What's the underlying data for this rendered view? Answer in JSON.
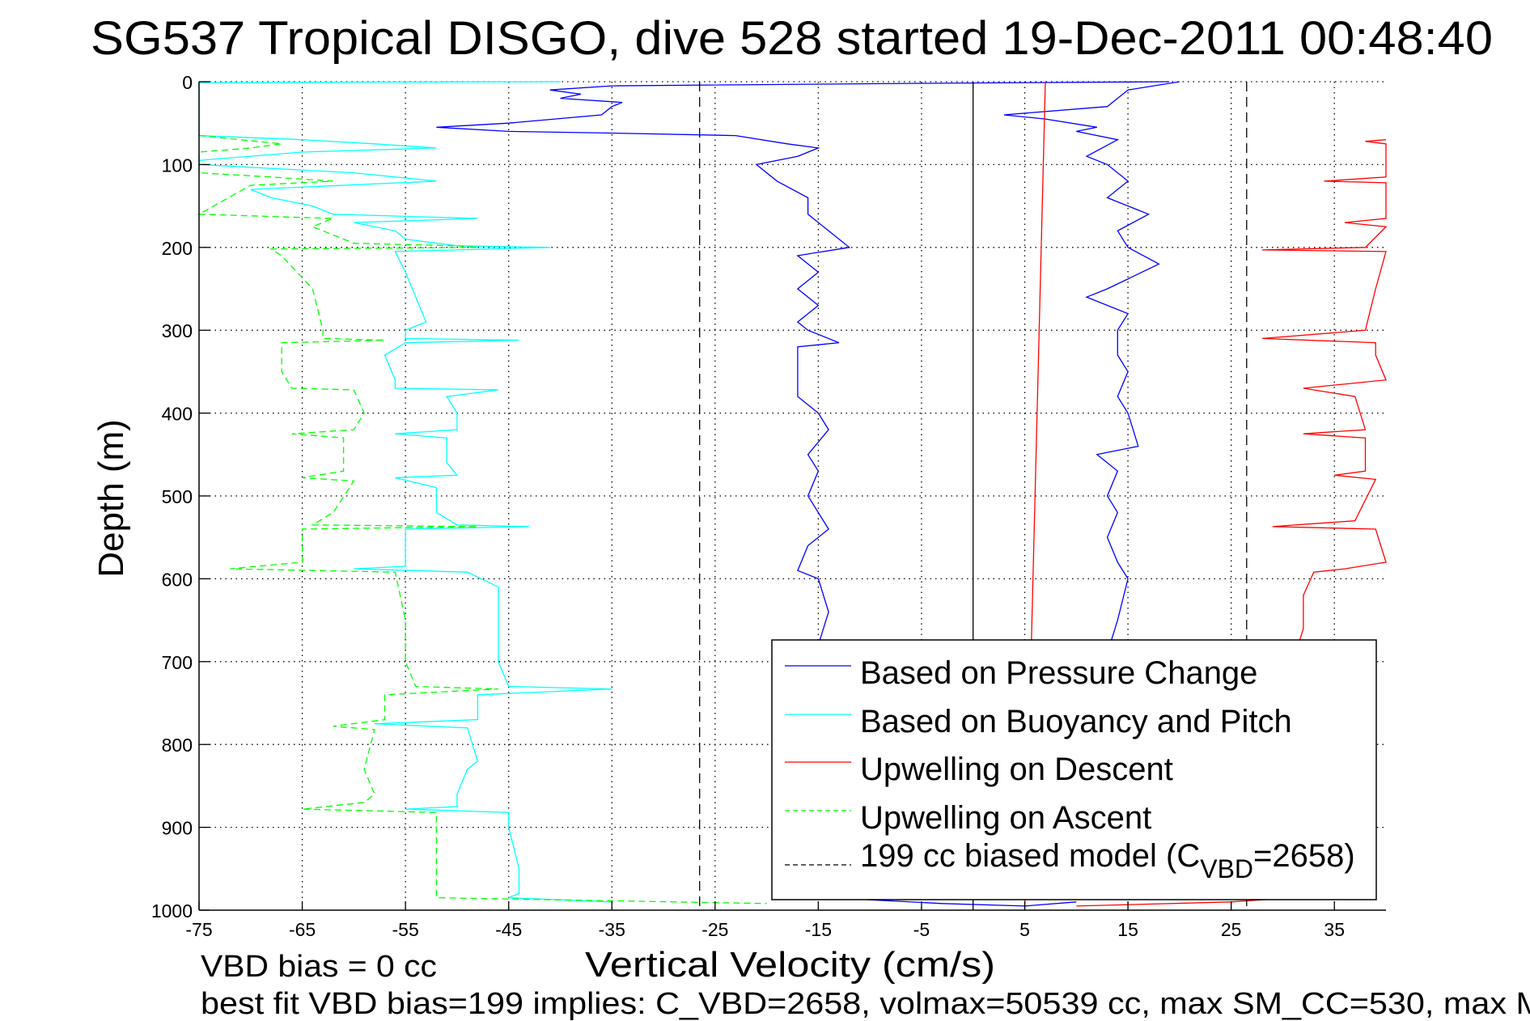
{
  "chart_data": {
    "type": "line",
    "title": "SG537 Tropical DISGO, dive 528 started 19-Dec-2011 00:48:40",
    "xlabel": "Vertical Velocity (cm/s)",
    "ylabel": "Depth (m)",
    "xlim": [
      -75,
      40
    ],
    "ylim": [
      0,
      1000
    ],
    "y_reversed": true,
    "grid": true,
    "xticks": [
      -75,
      -65,
      -55,
      -45,
      -35,
      -25,
      -15,
      -5,
      5,
      15,
      25,
      35
    ],
    "yticks": [
      0,
      100,
      200,
      300,
      400,
      500,
      600,
      700,
      800,
      900,
      1000
    ],
    "legend": {
      "placement": "bottom-right",
      "entries": [
        {
          "label": "Based on Pressure Change",
          "color": "#0000ff",
          "style": "solid"
        },
        {
          "label": "Based on Buoyancy and Pitch",
          "color": "#00ffff",
          "style": "solid"
        },
        {
          "label": "Upwelling on Descent",
          "color": "#ff0000",
          "style": "solid"
        },
        {
          "label": "Upwelling on Ascent",
          "color": "#00ff00",
          "style": "dashed"
        },
        {
          "label_main": "199 cc biased model (C",
          "label_sub": "VBD",
          "label_end": "=2658)",
          "color": "#000000",
          "style": "dashed"
        }
      ]
    },
    "series": [
      {
        "name": "Based on Pressure Change (descent)",
        "color": "#0000ff",
        "style": "solid",
        "points": [
          [
            19,
            0
          ],
          [
            -5,
            2
          ],
          [
            -35,
            5
          ],
          [
            -41,
            10
          ],
          [
            -38,
            15
          ],
          [
            -40,
            20
          ],
          [
            -34,
            25
          ],
          [
            -35,
            30
          ],
          [
            -36,
            40
          ],
          [
            -45,
            50
          ],
          [
            -52,
            55
          ],
          [
            -45,
            60
          ],
          [
            -35,
            62
          ],
          [
            -23,
            65
          ],
          [
            -18,
            75
          ],
          [
            -15,
            80
          ],
          [
            -17,
            90
          ],
          [
            -21,
            100
          ],
          [
            -19,
            120
          ],
          [
            -16,
            140
          ],
          [
            -16,
            160
          ],
          [
            -14,
            180
          ],
          [
            -12,
            200
          ],
          [
            -17,
            210
          ],
          [
            -15,
            230
          ],
          [
            -17,
            250
          ],
          [
            -15,
            270
          ],
          [
            -17,
            290
          ],
          [
            -16,
            300
          ],
          [
            -13,
            315
          ],
          [
            -17,
            320
          ],
          [
            -17,
            350
          ],
          [
            -17,
            380
          ],
          [
            -15,
            400
          ],
          [
            -14,
            420
          ],
          [
            -16,
            450
          ],
          [
            -15,
            470
          ],
          [
            -16,
            500
          ],
          [
            -14,
            540
          ],
          [
            -16,
            560
          ],
          [
            -17,
            590
          ],
          [
            -15,
            600
          ],
          [
            -14,
            640
          ],
          [
            -15,
            680
          ],
          [
            -15,
            750
          ],
          [
            -15,
            850
          ],
          [
            -15,
            950
          ],
          [
            -14,
            985
          ],
          [
            -3,
            992
          ],
          [
            5,
            995
          ],
          [
            10,
            990
          ]
        ]
      },
      {
        "name": "Based on Pressure Change (ascent)",
        "color": "#0000ff",
        "style": "solid",
        "points": [
          [
            20,
            0
          ],
          [
            15,
            10
          ],
          [
            13,
            30
          ],
          [
            3,
            40
          ],
          [
            7,
            45
          ],
          [
            12,
            55
          ],
          [
            10,
            60
          ],
          [
            14,
            70
          ],
          [
            11,
            90
          ],
          [
            13,
            100
          ],
          [
            15,
            120
          ],
          [
            13,
            140
          ],
          [
            17,
            160
          ],
          [
            14,
            180
          ],
          [
            15,
            200
          ],
          [
            18,
            220
          ],
          [
            13,
            250
          ],
          [
            11,
            260
          ],
          [
            15,
            280
          ],
          [
            14,
            300
          ],
          [
            14,
            330
          ],
          [
            15,
            350
          ],
          [
            14,
            380
          ],
          [
            15,
            400
          ],
          [
            16,
            440
          ],
          [
            12,
            450
          ],
          [
            14,
            470
          ],
          [
            13,
            500
          ],
          [
            14,
            520
          ],
          [
            13,
            550
          ],
          [
            14,
            580
          ],
          [
            15,
            600
          ],
          [
            14,
            650
          ],
          [
            13,
            690
          ],
          [
            14,
            760
          ]
        ]
      },
      {
        "name": "Based on Buoyancy and Pitch",
        "color": "#00ffff",
        "style": "solid",
        "points": [
          [
            -40,
            0
          ],
          [
            -75,
            1
          ],
          [
            -75,
            65
          ],
          [
            -65,
            70
          ],
          [
            -58,
            75
          ],
          [
            -52,
            80
          ],
          [
            -65,
            85
          ],
          [
            -75,
            95
          ],
          [
            -75,
            100
          ],
          [
            -60,
            110
          ],
          [
            -52,
            120
          ],
          [
            -70,
            130
          ],
          [
            -68,
            140
          ],
          [
            -64,
            150
          ],
          [
            -62,
            160
          ],
          [
            -48,
            165
          ],
          [
            -60,
            170
          ],
          [
            -56,
            180
          ],
          [
            -55,
            190
          ],
          [
            -50,
            198
          ],
          [
            -41,
            200
          ],
          [
            -56,
            205
          ],
          [
            -55,
            230
          ],
          [
            -54,
            260
          ],
          [
            -53,
            290
          ],
          [
            -55,
            300
          ],
          [
            -55,
            310
          ],
          [
            -44,
            312
          ],
          [
            -55,
            315
          ],
          [
            -57,
            330
          ],
          [
            -56,
            360
          ],
          [
            -56,
            370
          ],
          [
            -46,
            372
          ],
          [
            -51,
            380
          ],
          [
            -50,
            400
          ],
          [
            -50,
            420
          ],
          [
            -56,
            425
          ],
          [
            -51,
            430
          ],
          [
            -51,
            460
          ],
          [
            -50,
            475
          ],
          [
            -56,
            478
          ],
          [
            -52,
            490
          ],
          [
            -52,
            520
          ],
          [
            -50,
            535
          ],
          [
            -43,
            537
          ],
          [
            -55,
            540
          ],
          [
            -55,
            570
          ],
          [
            -55,
            585
          ],
          [
            -60,
            588
          ],
          [
            -49,
            592
          ],
          [
            -46,
            610
          ],
          [
            -46,
            650
          ],
          [
            -46,
            700
          ],
          [
            -45,
            730
          ],
          [
            -35,
            733
          ],
          [
            -48,
            740
          ],
          [
            -48,
            770
          ],
          [
            -58,
            775
          ],
          [
            -49,
            780
          ],
          [
            -48,
            820
          ],
          [
            -49,
            830
          ],
          [
            -50,
            860
          ],
          [
            -50,
            875
          ],
          [
            -55,
            878
          ],
          [
            -45,
            882
          ],
          [
            -45,
            900
          ],
          [
            -44,
            950
          ],
          [
            -44,
            980
          ],
          [
            -45,
            985
          ],
          [
            -35,
            990
          ]
        ]
      },
      {
        "name": "Upwelling on Ascent",
        "color": "#00ff00",
        "style": "dashed",
        "points": [
          [
            -75,
            65
          ],
          [
            -67,
            75
          ],
          [
            -70,
            80
          ],
          [
            -75,
            85
          ],
          [
            -75,
            110
          ],
          [
            -68,
            115
          ],
          [
            -62,
            120
          ],
          [
            -70,
            125
          ],
          [
            -75,
            160
          ],
          [
            -62,
            165
          ],
          [
            -64,
            175
          ],
          [
            -60,
            195
          ],
          [
            -50,
            198
          ],
          [
            -48,
            200
          ],
          [
            -68,
            202
          ],
          [
            -67,
            210
          ],
          [
            -64,
            250
          ],
          [
            -63,
            300
          ],
          [
            -63,
            310
          ],
          [
            -57,
            312
          ],
          [
            -67,
            315
          ],
          [
            -67,
            350
          ],
          [
            -66,
            370
          ],
          [
            -60,
            372
          ],
          [
            -59,
            400
          ],
          [
            -60,
            420
          ],
          [
            -66,
            425
          ],
          [
            -61,
            430
          ],
          [
            -61,
            470
          ],
          [
            -65,
            478
          ],
          [
            -60,
            482
          ],
          [
            -62,
            520
          ],
          [
            -64,
            535
          ],
          [
            -48,
            537
          ],
          [
            -65,
            540
          ],
          [
            -65,
            580
          ],
          [
            -72,
            588
          ],
          [
            -56,
            592
          ],
          [
            -55,
            650
          ],
          [
            -55,
            700
          ],
          [
            -54,
            730
          ],
          [
            -46,
            733
          ],
          [
            -57,
            740
          ],
          [
            -57,
            770
          ],
          [
            -62,
            778
          ],
          [
            -58,
            782
          ],
          [
            -59,
            830
          ],
          [
            -58,
            860
          ],
          [
            -59,
            870
          ],
          [
            -65,
            878
          ],
          [
            -52,
            882
          ],
          [
            -52,
            950
          ],
          [
            -52,
            985
          ],
          [
            -20,
            992
          ]
        ]
      },
      {
        "name": "Upwelling on Descent",
        "color": "#ff0000",
        "style": "solid",
        "points": [
          [
            40,
            70
          ],
          [
            38,
            72
          ],
          [
            40,
            75
          ],
          [
            40,
            115
          ],
          [
            34,
            120
          ],
          [
            40,
            122
          ],
          [
            40,
            165
          ],
          [
            36,
            170
          ],
          [
            40,
            175
          ],
          [
            38,
            200
          ],
          [
            28,
            203
          ],
          [
            40,
            205
          ],
          [
            39,
            250
          ],
          [
            38,
            300
          ],
          [
            28,
            310
          ],
          [
            39,
            315
          ],
          [
            39,
            330
          ],
          [
            40,
            360
          ],
          [
            32,
            370
          ],
          [
            37,
            380
          ],
          [
            38,
            420
          ],
          [
            32,
            425
          ],
          [
            38,
            430
          ],
          [
            38,
            470
          ],
          [
            35,
            475
          ],
          [
            39,
            480
          ],
          [
            37,
            530
          ],
          [
            29,
            537
          ],
          [
            39,
            540
          ],
          [
            40,
            580
          ],
          [
            36,
            588
          ],
          [
            33,
            592
          ],
          [
            32,
            620
          ],
          [
            32,
            660
          ],
          [
            31,
            700
          ],
          [
            31,
            800
          ],
          [
            31,
            900
          ],
          [
            31,
            985
          ],
          [
            25,
            990
          ],
          [
            10,
            995
          ]
        ]
      },
      {
        "name": "Upwelling model line",
        "color": "#ff0000",
        "style": "solid",
        "points": [
          [
            7,
            0
          ],
          [
            5,
            1000
          ]
        ]
      },
      {
        "name": "Zero velocity",
        "color": "#000000",
        "style": "solid",
        "points": [
          [
            0,
            0
          ],
          [
            0,
            1000
          ]
        ]
      },
      {
        "name": "199 cc biased model (descent)",
        "color": "#000000",
        "style": "dashed",
        "points": [
          [
            -26.5,
            0
          ],
          [
            -26.5,
            1000
          ]
        ]
      },
      {
        "name": "199 cc biased model (ascent)",
        "color": "#000000",
        "style": "dashed",
        "points": [
          [
            26.5,
            0
          ],
          [
            26.5,
            1000
          ]
        ]
      }
    ],
    "annotations": [
      "VBD bias = 0 cc",
      "best fit VBD bias=199 implies: C_VBD=2658, volmax=50539 cc, max SM_CC=530, max M"
    ]
  }
}
